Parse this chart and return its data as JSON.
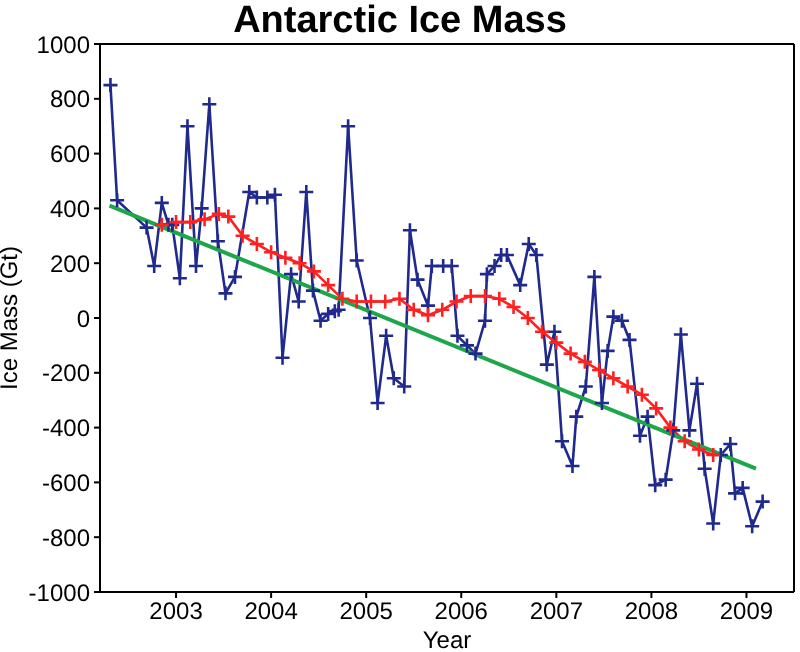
{
  "chart_data": {
    "type": "line",
    "title": "Antarctic Ice Mass",
    "xlabel": "Year",
    "ylabel": "Ice Mass (Gt)",
    "xlim": [
      2002.2,
      2009.5
    ],
    "xticks": [
      2003,
      2004,
      2005,
      2006,
      2007,
      2008,
      2009
    ],
    "ylim": [
      -1000,
      1000
    ],
    "yticks": [
      -1000,
      -800,
      -600,
      -400,
      -200,
      0,
      200,
      400,
      600,
      800,
      1000
    ],
    "legend": false,
    "line_style": "solid",
    "series": [
      {
        "color": "#1f2a8c",
        "marker": "cross",
        "x": [
          2002.31,
          2002.38,
          2002.69,
          2002.77,
          2002.85,
          2002.92,
          2002.96,
          2003.04,
          2003.12,
          2003.21,
          2003.27,
          2003.35,
          2003.44,
          2003.52,
          2003.62,
          2003.77,
          2003.85,
          2003.96,
          2004.04,
          2004.12,
          2004.21,
          2004.29,
          2004.37,
          2004.44,
          2004.52,
          2004.6,
          2004.67,
          2004.71,
          2004.81,
          2004.9,
          2005.04,
          2005.12,
          2005.21,
          2005.29,
          2005.4,
          2005.46,
          2005.54,
          2005.65,
          2005.69,
          2005.81,
          2005.9,
          2005.96,
          2006.06,
          2006.15,
          2006.25,
          2006.27,
          2006.35,
          2006.42,
          2006.48,
          2006.62,
          2006.71,
          2006.79,
          2006.9,
          2006.98,
          2007.06,
          2007.17,
          2007.21,
          2007.31,
          2007.4,
          2007.48,
          2007.54,
          2007.6,
          2007.69,
          2007.77,
          2007.88,
          2007.96,
          2008.04,
          2008.15,
          2008.23,
          2008.31,
          2008.4,
          2008.48,
          2008.56,
          2008.65,
          2008.73,
          2008.83,
          2008.88,
          2008.96,
          2009.06,
          2009.17
        ],
        "values": [
          850,
          430,
          330,
          190,
          420,
          340,
          340,
          145,
          700,
          190,
          400,
          780,
          280,
          90,
          150,
          460,
          440,
          440,
          450,
          -145,
          160,
          60,
          460,
          100,
          -10,
          15,
          25,
          30,
          700,
          210,
          0,
          -310,
          -65,
          -220,
          -250,
          320,
          140,
          45,
          190,
          190,
          190,
          -65,
          -100,
          -130,
          -10,
          160,
          190,
          230,
          230,
          120,
          270,
          230,
          -170,
          -50,
          -450,
          -540,
          -360,
          -250,
          150,
          -310,
          -120,
          5,
          -10,
          -80,
          -430,
          -360,
          -610,
          -590,
          -410,
          -60,
          -410,
          -240,
          -550,
          -750,
          -500,
          -460,
          -640,
          -620,
          -760,
          -670
        ]
      },
      {
        "color": "#ff2020",
        "marker": "cross",
        "x": [
          2002.85,
          2003.0,
          2003.15,
          2003.3,
          2003.45,
          2003.55,
          2003.7,
          2003.85,
          2004.0,
          2004.15,
          2004.3,
          2004.45,
          2004.6,
          2004.75,
          2004.9,
          2005.05,
          2005.2,
          2005.35,
          2005.5,
          2005.65,
          2005.8,
          2005.95,
          2006.1,
          2006.25,
          2006.4,
          2006.55,
          2006.7,
          2006.85,
          2007.0,
          2007.15,
          2007.3,
          2007.45,
          2007.6,
          2007.75,
          2007.9,
          2008.05,
          2008.2,
          2008.35,
          2008.5,
          2008.65
        ],
        "values": [
          340,
          350,
          350,
          360,
          380,
          370,
          300,
          270,
          240,
          220,
          200,
          170,
          120,
          70,
          60,
          60,
          60,
          70,
          30,
          10,
          30,
          60,
          80,
          80,
          70,
          40,
          0,
          -50,
          -90,
          -130,
          -160,
          -190,
          -220,
          -250,
          -280,
          -330,
          -400,
          -450,
          -480,
          -500
        ]
      },
      {
        "color": "#1ea64a",
        "marker": "none",
        "x": [
          2002.3,
          2009.1
        ],
        "values": [
          410,
          -550
        ]
      }
    ]
  }
}
